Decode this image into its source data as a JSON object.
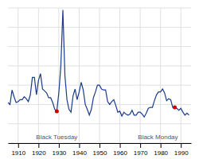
{
  "chart_data": {
    "type": "line",
    "x": [
      1905,
      1906,
      1907,
      1908,
      1909,
      1910,
      1911,
      1912,
      1913,
      1914,
      1915,
      1916,
      1917,
      1918,
      1919,
      1920,
      1921,
      1922,
      1923,
      1924,
      1925,
      1926,
      1927,
      1928,
      1929,
      1930,
      1931,
      1932,
      1933,
      1934,
      1935,
      1936,
      1937,
      1938,
      1939,
      1940,
      1941,
      1942,
      1943,
      1944,
      1945,
      1946,
      1947,
      1948,
      1949,
      1950,
      1951,
      1952,
      1953,
      1954,
      1955,
      1956,
      1957,
      1958,
      1959,
      1960,
      1961,
      1962,
      1963,
      1964,
      1965,
      1966,
      1967,
      1968,
      1969,
      1970,
      1971,
      1972,
      1973,
      1974,
      1975,
      1976,
      1977,
      1978,
      1979,
      1980,
      1981,
      1982,
      1983,
      1984,
      1985,
      1986,
      1987,
      1988,
      1989,
      1990,
      1991,
      1992,
      1993,
      1994
    ],
    "values": [
      4.2,
      4.0,
      5.5,
      4.8,
      4.2,
      4.3,
      4.5,
      4.5,
      4.8,
      4.6,
      4.3,
      5.0,
      6.8,
      6.8,
      5.0,
      6.5,
      7.2,
      5.6,
      5.4,
      5.2,
      4.7,
      4.7,
      4.2,
      3.5,
      3.3,
      5.2,
      8.0,
      13.8,
      7.0,
      4.5,
      3.5,
      3.2,
      4.9,
      5.6,
      4.5,
      5.3,
      6.3,
      5.5,
      4.0,
      3.5,
      2.9,
      3.5,
      4.7,
      5.3,
      6.0,
      6.0,
      5.6,
      5.5,
      5.5,
      4.3,
      4.0,
      4.3,
      4.5,
      3.9,
      3.2,
      3.3,
      2.8,
      3.2,
      3.0,
      2.9,
      3.0,
      3.4,
      2.9,
      2.9,
      3.2,
      3.2,
      3.0,
      2.7,
      3.1,
      3.6,
      3.7,
      3.7,
      4.4,
      5.0,
      5.3,
      5.3,
      5.6,
      5.2,
      4.4,
      4.6,
      4.5,
      3.7,
      3.7,
      3.6,
      3.4,
      3.6,
      3.2,
      2.9,
      3.1,
      2.9
    ],
    "color": "#1a3a8c",
    "xlim": [
      1905,
      1995
    ],
    "ylim": [
      0,
      14
    ],
    "xticks": [
      1910,
      1920,
      1930,
      1940,
      1950,
      1960,
      1970,
      1980,
      1990
    ],
    "yticks": [
      0,
      2,
      4,
      6,
      8,
      10,
      12,
      14
    ],
    "grid": true,
    "tick_labels": "x",
    "annotations": [
      {
        "text": "Black Tuesday",
        "x": 1929,
        "y": 3.3,
        "color": "#cc0000"
      },
      {
        "text": "Black Monday",
        "x": 1987,
        "y": 3.7,
        "color": "#cc0000"
      }
    ]
  }
}
